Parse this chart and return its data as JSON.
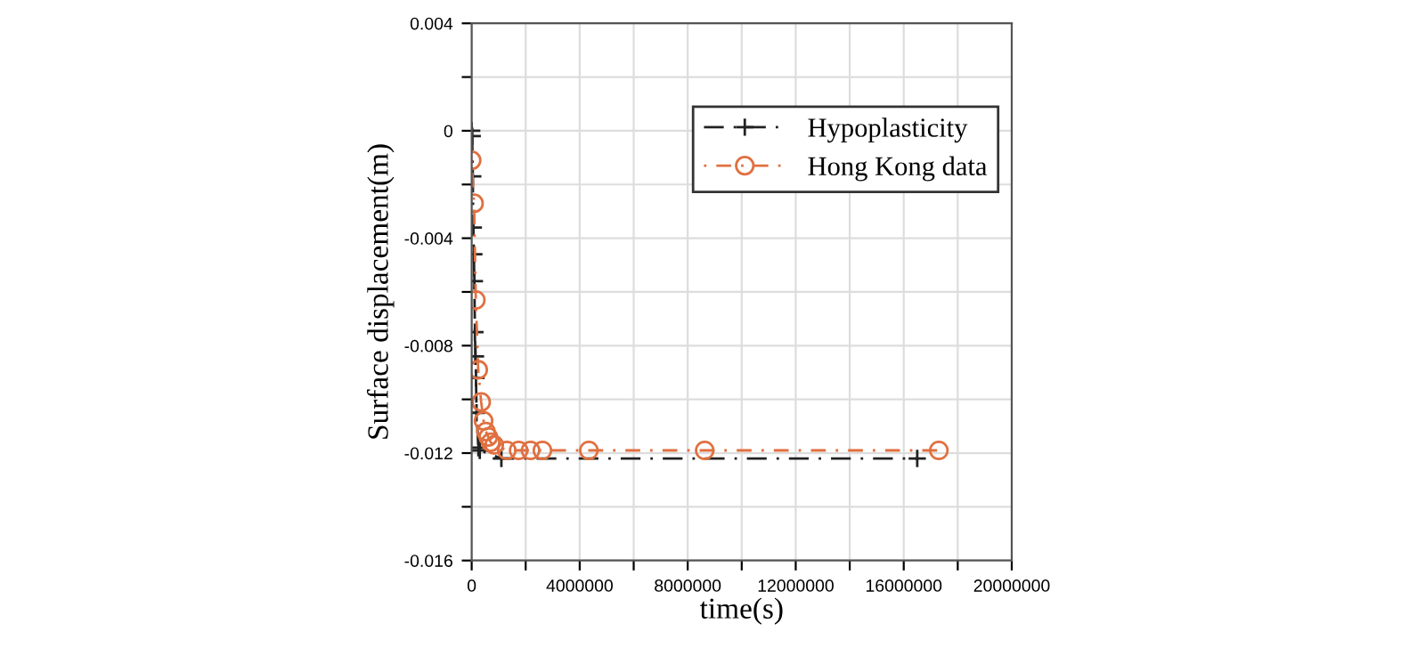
{
  "chart_data": {
    "type": "line",
    "xlabel": "time(s)",
    "ylabel": "Surface displacement(m)",
    "xlim": [
      0,
      20000000
    ],
    "ylim": [
      -0.016,
      0.004
    ],
    "xticks": [
      0,
      {
        "value": 2000000,
        "label": null
      },
      4000000,
      {
        "value": 6000000,
        "label": null
      },
      8000000,
      {
        "value": 10000000,
        "label": null
      },
      12000000,
      {
        "value": 14000000,
        "label": null
      },
      16000000,
      {
        "value": 18000000,
        "label": null
      },
      20000000
    ],
    "yticks": [
      -0.016,
      {
        "value": -0.014,
        "label": null
      },
      -0.012,
      {
        "value": -0.01,
        "label": null
      },
      -0.008,
      {
        "value": -0.006,
        "label": null
      },
      -0.004,
      {
        "value": -0.002,
        "label": null
      },
      0,
      {
        "value": 0.002,
        "label": null
      },
      0.004
    ],
    "grid": true,
    "legend": "top right",
    "series": [
      {
        "name": "Hypoplasticity",
        "color": "#222222",
        "marker": "cross",
        "line_style": "dashed",
        "x": [
          0,
          20000,
          40000,
          60000,
          80000,
          100000,
          120000,
          140000,
          160000,
          180000,
          250000,
          300000,
          1100000,
          16500000
        ],
        "values": [
          0,
          -0.0002,
          -0.0017,
          -0.0036,
          -0.0046,
          -0.0056,
          -0.0075,
          -0.0084,
          -0.0092,
          -0.0105,
          -0.0118,
          -0.0119,
          -0.0122,
          -0.0122
        ]
      },
      {
        "name": "Hong Kong data",
        "color": "#e07040",
        "marker": "circle",
        "line_style": "dotted",
        "x": [
          0,
          88000,
          154000,
          242000,
          352000,
          440000,
          528000,
          616000,
          704000,
          836000,
          1300000,
          1740000,
          2180000,
          2620000,
          4340000,
          8630000,
          17300000
        ],
        "values": [
          -0.0011,
          -0.0027,
          -0.0063,
          -0.0089,
          -0.0101,
          -0.0108,
          -0.0112,
          -0.0114,
          -0.0116,
          -0.0117,
          -0.0119,
          -0.0119,
          -0.0119,
          -0.0119,
          -0.0119,
          -0.0119,
          -0.0119
        ]
      }
    ]
  }
}
